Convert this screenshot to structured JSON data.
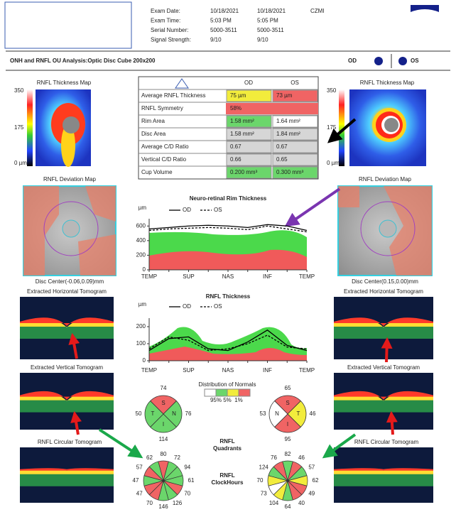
{
  "header": {
    "exam_labels": [
      "Exam Date:",
      "Exam Time:",
      "Serial Number:",
      "Signal Strength:"
    ],
    "od_info": [
      "10/18/2021",
      "5:03 PM",
      "5000-3511",
      "9/10"
    ],
    "os_info": [
      "10/18/2021",
      "5:05 PM",
      "5000-3511",
      "9/10"
    ],
    "device": "CZMI",
    "title": "ONH and RNFL OU Analysis:Optic Disc Cube 200x200",
    "od_label": "OD",
    "os_label": "OS"
  },
  "od": {
    "thickness_map_title": "RNFL Thickness Map",
    "scale": [
      "350",
      "175",
      "0 µm"
    ],
    "deviation_map_title": "RNFL Deviation Map",
    "disc_center": "Disc Center(-0.06,0.09)mm",
    "horizontal_title": "Extracted Horizontal Tomogram",
    "vertical_title": "Extracted Vertical Tomogram",
    "circular_title": "RNFL Circular Tomogram"
  },
  "os": {
    "thickness_map_title": "RNFL Thickness Map",
    "scale": [
      "350",
      "175",
      "0 µm"
    ],
    "deviation_map_title": "RNFL Deviation Map",
    "disc_center": "Disc Center(0.15,0.00)mm",
    "horizontal_title": "Extracted Horizontal Tomogram",
    "vertical_title": "Extracted Vertical Tomogram",
    "circular_title": "RNFL Circular Tomogram"
  },
  "table": {
    "columns": [
      "OD",
      "OS"
    ],
    "rows": [
      {
        "label": "Average RNFL Thickness",
        "od": "75 µm",
        "os": "73 µm",
        "od_color": "#f2ec3c",
        "os_color": "#f06464"
      },
      {
        "label": "RNFL Symmetry",
        "value": "58%",
        "color": "#f06464"
      },
      {
        "label": "Rim Area",
        "od": "1.58 mm²",
        "os": "1.64 mm²",
        "od_color": "#6bd66b",
        "os_color": "#ffffff"
      },
      {
        "label": "Disc Area",
        "od": "1.58 mm²",
        "os": "1.84 mm²",
        "od_color": "#d6d6d6",
        "os_color": "#d6d6d6"
      },
      {
        "label": "Average C/D Ratio",
        "od": "0.67",
        "os": "0.67",
        "od_color": "#d6d6d6",
        "os_color": "#d6d6d6"
      },
      {
        "label": "Vertical C/D Ratio",
        "od": "0.66",
        "os": "0.65",
        "od_color": "#d6d6d6",
        "os_color": "#d6d6d6"
      },
      {
        "label": "Cup Volume",
        "od": "0.200 mm³",
        "os": "0.300 mm³",
        "od_color": "#6bd66b",
        "os_color": "#6bd66b"
      }
    ]
  },
  "normals": {
    "title": "Distribution of Normals",
    "labels": [
      "95%",
      "5%",
      "1%"
    ],
    "colors": [
      "#ffffff",
      "#6bd66b",
      "#f2ec3c",
      "#f06464"
    ]
  },
  "quadrants": {
    "title_lines": [
      "RNFL",
      "Quadrants"
    ],
    "od": {
      "letters": [
        "S",
        "N",
        "I",
        "T"
      ],
      "values": [
        74,
        76,
        114,
        50
      ],
      "colors": [
        "#f06464",
        "#6bd66b",
        "#6bd66b",
        "#6bd66b"
      ]
    },
    "os": {
      "letters": [
        "S",
        "T",
        "I",
        "N"
      ],
      "values": [
        65,
        46,
        95,
        53
      ],
      "colors": [
        "#f06464",
        "#f2ec3c",
        "#f06464",
        "#ffffff"
      ]
    }
  },
  "clock_hours": {
    "title_lines": [
      "RNFL",
      "ClockHours"
    ],
    "od": {
      "values": [
        80,
        72,
        94,
        61,
        70,
        126,
        146,
        70,
        47,
        47,
        57,
        62
      ],
      "colors": [
        "#f06464",
        "#6bd66b",
        "#6bd66b",
        "#6bd66b",
        "#f06464",
        "#6bd66b",
        "#6bd66b",
        "#f06464",
        "#f06464",
        "#6bd66b",
        "#f06464",
        "#6bd66b"
      ]
    },
    "os": {
      "values": [
        82,
        46,
        57,
        62,
        49,
        40,
        64,
        104,
        73,
        70,
        124,
        76
      ],
      "colors": [
        "#6bd66b",
        "#f06464",
        "#6bd66b",
        "#f2ec3c",
        "#f06464",
        "#f06464",
        "#6bd66b",
        "#f2ec3c",
        "#ffffff",
        "#f2ec3c",
        "#6bd66b",
        "#f06464"
      ]
    }
  },
  "chart_data": [
    {
      "type": "line",
      "title": "Neuro-retinal Rim Thickness",
      "y_label": "µm",
      "categories": [
        "TEMP",
        null,
        "SUP",
        null,
        "NAS",
        null,
        "INF",
        null,
        "TEMP"
      ],
      "series": [
        {
          "name": "OD",
          "color": "#000000",
          "dash": false,
          "values": [
            560,
            580,
            600,
            610,
            600,
            580,
            620,
            600,
            540
          ]
        },
        {
          "name": "OS",
          "color": "#000000",
          "dash": true,
          "values": [
            540,
            560,
            570,
            580,
            570,
            550,
            600,
            560,
            520
          ]
        }
      ],
      "ylim": [
        0,
        700
      ],
      "yticks": [
        0,
        200,
        400,
        600
      ]
    },
    {
      "type": "line",
      "title": "RNFL Thickness",
      "y_label": "µm",
      "categories": [
        "TEMP",
        null,
        "SUP",
        null,
        "NAS",
        null,
        "INF",
        null,
        "TEMP"
      ],
      "series": [
        {
          "name": "OD",
          "color": "#000000",
          "dash": false,
          "values": [
            60,
            130,
            140,
            70,
            60,
            110,
            180,
            90,
            60
          ]
        },
        {
          "name": "OS",
          "color": "#000000",
          "dash": true,
          "values": [
            70,
            140,
            120,
            60,
            70,
            100,
            150,
            80,
            70
          ]
        }
      ],
      "ylim": [
        0,
        250
      ],
      "yticks": [
        0,
        100,
        200
      ]
    }
  ]
}
